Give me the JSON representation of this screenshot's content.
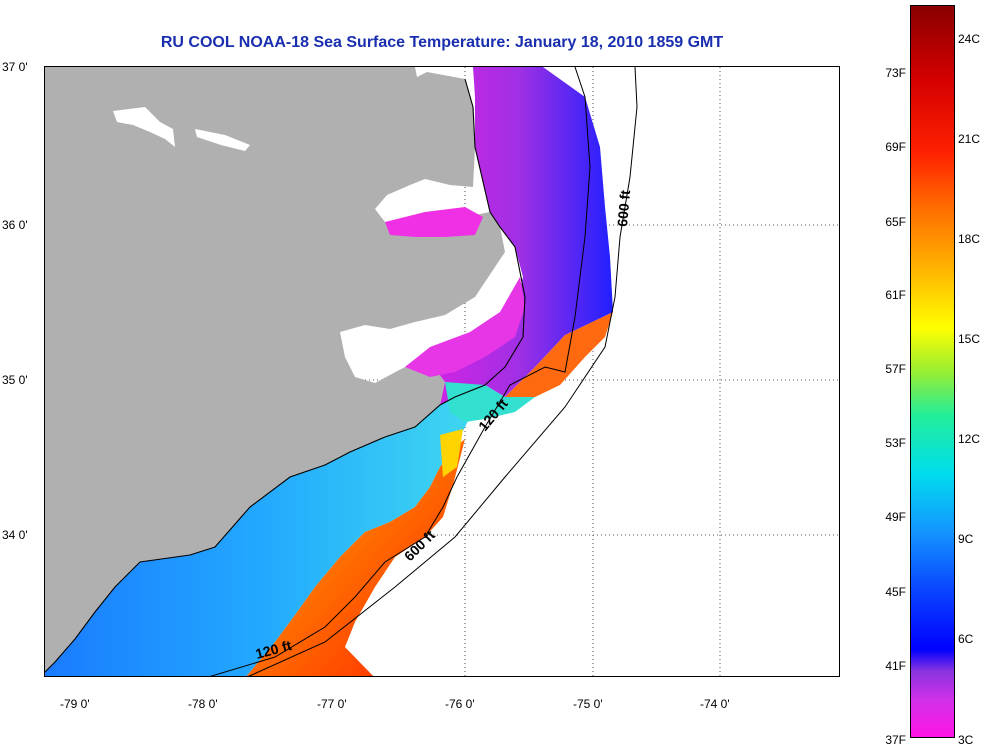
{
  "title": "RU COOL  NOAA-18  Sea Surface Temperature:  January 18, 2010 1859 GMT",
  "map": {
    "lat_labels": [
      "37 0'",
      "36 0'",
      "35 0'",
      "34 0'"
    ],
    "lon_labels": [
      "-79 0'",
      "-78 0'",
      "-77 0'",
      "-76 0'",
      "-75 0'",
      "-74 0'"
    ],
    "isobath_labels": [
      "600 ft",
      "120 ft",
      "600 ft",
      "120 ft"
    ],
    "colors": {
      "land": "#b0b0b0",
      "water_nodata": "#ffffff"
    }
  },
  "colorbar": {
    "f_labels": [
      "73F",
      "69F",
      "65F",
      "61F",
      "57F",
      "53F",
      "49F",
      "45F",
      "41F",
      "37F"
    ],
    "c_labels": [
      "24C",
      "21C",
      "18C",
      "15C",
      "12C",
      "9C",
      "6C",
      "3C"
    ]
  }
}
